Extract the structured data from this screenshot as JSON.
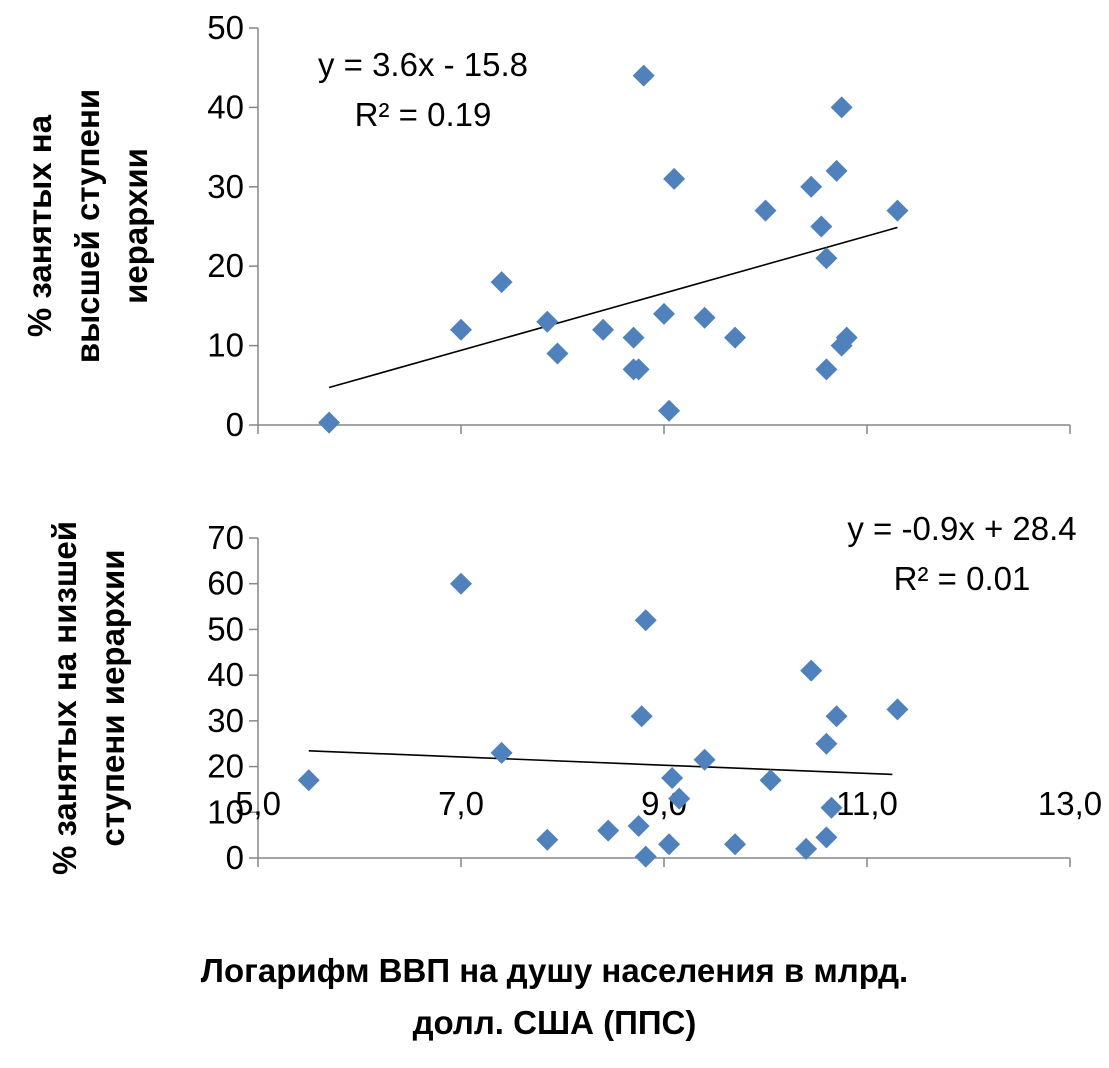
{
  "chart_data": [
    {
      "type": "scatter",
      "ylabel_lines": [
        "% занятых на",
        "высшей ступени",
        "иерархии"
      ],
      "xlim": [
        5.0,
        13.0
      ],
      "ylim": [
        0,
        50
      ],
      "yticks": [
        "0",
        "10",
        "20",
        "30",
        "40",
        "50"
      ],
      "annotation": {
        "equation": "y = 3.6x - 15.8",
        "r2": "R² = 0.19"
      },
      "trendline": {
        "slope": 3.6,
        "intercept": -15.8,
        "x_start": 5.7,
        "x_end": 11.3
      },
      "marker_color": "#4F81BD",
      "points": [
        {
          "x": 5.7,
          "y": 0.3
        },
        {
          "x": 7.0,
          "y": 12
        },
        {
          "x": 7.4,
          "y": 18
        },
        {
          "x": 7.85,
          "y": 13
        },
        {
          "x": 7.95,
          "y": 9
        },
        {
          "x": 8.4,
          "y": 12
        },
        {
          "x": 8.7,
          "y": 11
        },
        {
          "x": 8.7,
          "y": 7
        },
        {
          "x": 8.75,
          "y": 7
        },
        {
          "x": 8.8,
          "y": 44
        },
        {
          "x": 9.0,
          "y": 14
        },
        {
          "x": 9.05,
          "y": 1.8
        },
        {
          "x": 9.1,
          "y": 31
        },
        {
          "x": 9.4,
          "y": 13.5
        },
        {
          "x": 9.7,
          "y": 11
        },
        {
          "x": 10.0,
          "y": 27
        },
        {
          "x": 10.45,
          "y": 30
        },
        {
          "x": 10.55,
          "y": 25
        },
        {
          "x": 10.6,
          "y": 21
        },
        {
          "x": 10.6,
          "y": 7
        },
        {
          "x": 10.7,
          "y": 32
        },
        {
          "x": 10.75,
          "y": 40
        },
        {
          "x": 10.75,
          "y": 10
        },
        {
          "x": 10.8,
          "y": 11
        },
        {
          "x": 11.3,
          "y": 27
        }
      ]
    },
    {
      "type": "scatter",
      "ylabel_lines": [
        "% занятых на низшей",
        "ступени иерархии"
      ],
      "xlim": [
        5.0,
        13.0
      ],
      "ylim": [
        0,
        70
      ],
      "xticks": [
        "5,0",
        "7,0",
        "9,0",
        "11,0",
        "13,0"
      ],
      "yticks": [
        "0",
        "10",
        "20",
        "30",
        "40",
        "50",
        "60",
        "70"
      ],
      "xlabel": "Логарифм ВВП на душу населения в млрд. долл. США (ППС)",
      "xlabel_lines": [
        "Логарифм ВВП на душу населения в млрд.",
        "долл. США (ППС)"
      ],
      "annotation": {
        "equation": "y = -0.9x + 28.4",
        "r2": "R² = 0.01"
      },
      "trendline": {
        "slope": -0.9,
        "intercept": 28.4,
        "x_start": 5.5,
        "x_end": 11.25
      },
      "marker_color": "#4F81BD",
      "points": [
        {
          "x": 5.5,
          "y": 17
        },
        {
          "x": 7.0,
          "y": 60
        },
        {
          "x": 7.4,
          "y": 23
        },
        {
          "x": 7.85,
          "y": 4
        },
        {
          "x": 8.45,
          "y": 6
        },
        {
          "x": 8.75,
          "y": 7
        },
        {
          "x": 8.78,
          "y": 31
        },
        {
          "x": 8.82,
          "y": 52
        },
        {
          "x": 8.82,
          "y": 0.3
        },
        {
          "x": 9.05,
          "y": 3
        },
        {
          "x": 9.08,
          "y": 17.5
        },
        {
          "x": 9.15,
          "y": 13
        },
        {
          "x": 9.4,
          "y": 21.5
        },
        {
          "x": 9.7,
          "y": 3
        },
        {
          "x": 10.05,
          "y": 17
        },
        {
          "x": 10.4,
          "y": 2
        },
        {
          "x": 10.45,
          "y": 41
        },
        {
          "x": 10.6,
          "y": 25
        },
        {
          "x": 10.6,
          "y": 4.5
        },
        {
          "x": 10.65,
          "y": 11
        },
        {
          "x": 10.7,
          "y": 31
        },
        {
          "x": 11.3,
          "y": 32.5
        }
      ]
    }
  ]
}
